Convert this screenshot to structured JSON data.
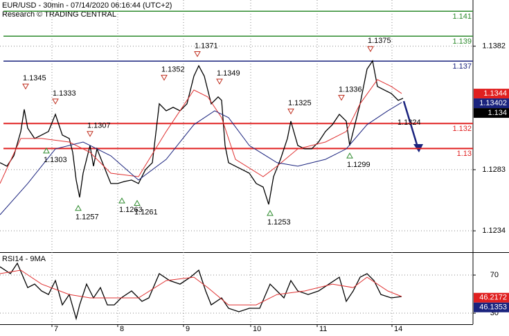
{
  "chart_data": [
    {
      "type": "price",
      "title": "EUR/USD - 30min - 07/14/2020 06:16:44 (UTC+2)",
      "subtitle": "Research © TRADING CENTRAL",
      "xlim": [
        0,
        341.5
      ],
      "xticks": [
        {
          "value": 37.5,
          "label": "7"
        },
        {
          "value": 85,
          "label": "8"
        },
        {
          "value": 132.5,
          "label": "9"
        },
        {
          "value": 181,
          "label": "10"
        },
        {
          "value": 229,
          "label": "11"
        },
        {
          "value": 283,
          "label": "14"
        }
      ],
      "ylim": [
        1.1218,
        1.1419
      ],
      "yticks": [
        1.1234,
        1.1283,
        1.1382
      ],
      "grid": true,
      "series": [
        {
          "color": "#000000",
          "x": [
            0,
            5,
            10,
            15,
            17.5,
            20,
            25,
            30,
            35,
            40,
            45,
            50,
            52.5,
            55,
            57.5,
            60,
            62.5,
            65,
            67.5,
            70,
            75,
            80,
            85,
            90,
            95,
            100,
            105,
            110,
            115,
            120,
            125,
            130,
            135,
            140,
            143.5,
            147.5,
            152.5,
            157.5,
            160,
            162.5,
            165,
            170,
            175,
            180,
            185,
            190,
            194,
            197.5,
            202.5,
            207.5,
            210,
            215,
            220,
            225,
            230,
            235,
            240,
            245,
            250,
            252.5,
            255,
            260,
            265,
            269,
            272.5,
            277.5,
            282.5,
            287.5,
            291
          ],
          "values": [
            1.12886,
            1.12858,
            1.12941,
            1.13136,
            1.13313,
            1.13163,
            1.1308,
            1.13108,
            1.13136,
            1.13274,
            1.13108,
            1.1308,
            1.12969,
            1.12747,
            1.12608,
            1.12802,
            1.12913,
            1.13024,
            1.12858,
            1.12997,
            1.12858,
            1.12719,
            1.12719,
            1.12736,
            1.12747,
            1.12719,
            1.1283,
            1.12886,
            1.13358,
            1.13302,
            1.1333,
            1.13302,
            1.13358,
            1.1358,
            1.13663,
            1.1358,
            1.13358,
            1.13413,
            1.13386,
            1.13024,
            1.12886,
            1.12858,
            1.1283,
            1.12802,
            1.12719,
            1.12691,
            1.12552,
            1.12774,
            1.12913,
            1.1308,
            1.13219,
            1.13024,
            1.12997,
            1.12997,
            1.13052,
            1.13136,
            1.13191,
            1.13274,
            1.13219,
            1.13024,
            1.13136,
            1.13358,
            1.13636,
            1.13702,
            1.13497,
            1.13469,
            1.13441,
            1.13386,
            1.13402
          ]
        },
        {
          "color": "#e03030",
          "x": [
            0,
            15,
            30,
            50,
            65,
            80,
            100,
            120,
            140,
            150,
            160,
            170,
            190,
            200,
            215,
            235,
            250,
            260,
            272.5,
            282.5,
            290
          ],
          "values": [
            1.12719,
            1.1308,
            1.1308,
            1.13052,
            1.12969,
            1.12802,
            1.12774,
            1.13136,
            1.13469,
            1.13413,
            1.13247,
            1.12913,
            1.12774,
            1.12858,
            1.12997,
            1.13052,
            1.13136,
            1.13358,
            1.13552,
            1.13497,
            1.13441
          ]
        },
        {
          "color": "#1a237e",
          "x": [
            0,
            20,
            40,
            60,
            80,
            100,
            120,
            140,
            155,
            165,
            180,
            200,
            215,
            235,
            250,
            265,
            280,
            290
          ],
          "values": [
            1.12469,
            1.12719,
            1.12997,
            1.13052,
            1.12941,
            1.12747,
            1.12913,
            1.13191,
            1.13302,
            1.13247,
            1.13024,
            1.12886,
            1.12858,
            1.12913,
            1.12997,
            1.13191,
            1.13302,
            1.13369
          ]
        }
      ],
      "levels": [
        {
          "value": 1.141,
          "color": "#2e8b2e"
        },
        {
          "value": 1.139,
          "color": "#2e8b2e"
        },
        {
          "value": 1.137,
          "color": "#1a237e"
        },
        {
          "value": 1.132,
          "color": "#e02020"
        },
        {
          "value": 1.13,
          "color": "#e02020"
        }
      ],
      "annotations": [
        {
          "x": 18.5,
          "value": 1.1345,
          "kind": "high"
        },
        {
          "x": 40,
          "value": 1.1333,
          "kind": "high"
        },
        {
          "x": 65,
          "value": 1.1307,
          "kind": "high"
        },
        {
          "x": 118.5,
          "value": 1.1352,
          "kind": "high"
        },
        {
          "x": 142.5,
          "value": 1.1371,
          "kind": "high"
        },
        {
          "x": 158.5,
          "value": 1.1349,
          "kind": "high"
        },
        {
          "x": 210,
          "value": 1.1325,
          "kind": "high"
        },
        {
          "x": 246.5,
          "value": 1.1336,
          "kind": "high"
        },
        {
          "x": 267.5,
          "value": 1.1375,
          "kind": "high"
        },
        {
          "x": 33.5,
          "value": 1.1303,
          "kind": "low"
        },
        {
          "x": 56.5,
          "value": 1.1257,
          "kind": "low"
        },
        {
          "x": 88,
          "value": 1.1263,
          "kind": "low"
        },
        {
          "x": 99,
          "value": 1.1261,
          "kind": "low"
        },
        {
          "x": 195,
          "value": 1.1253,
          "kind": "low"
        },
        {
          "x": 252.5,
          "value": 1.1299,
          "kind": "low"
        },
        {
          "x": 287,
          "value": 1.1324,
          "kind": "target"
        }
      ],
      "last_values": [
        {
          "value": 1.1344,
          "color": "#e02020"
        },
        {
          "value": 1.13402,
          "color": "#1a237e"
        },
        {
          "value": 1.134,
          "color": "#000000"
        }
      ]
    },
    {
      "type": "oscillator",
      "title": "RSI14 - 9MA",
      "xlim": [
        0,
        341.5
      ],
      "ylim": [
        18.4,
        93.3
      ],
      "yticks": [
        30,
        70
      ],
      "grid": true,
      "series": [
        {
          "color": "#000000",
          "x": [
            0,
            7.5,
            12.5,
            20,
            25,
            30,
            35,
            40,
            45,
            50,
            55,
            57.5,
            62.5,
            67.5,
            72.5,
            77.5,
            82.5,
            87.5,
            95,
            102.5,
            107.5,
            115,
            122.5,
            130,
            137.5,
            143.5,
            148.5,
            152.5,
            160,
            165,
            172.5,
            180,
            187.5,
            195,
            200,
            205,
            210,
            215,
            222.5,
            230,
            237.5,
            245,
            250,
            255,
            260,
            265,
            270,
            275,
            282.5,
            290
          ],
          "values": [
            78.7,
            71.5,
            82.4,
            56.9,
            60.5,
            53.3,
            49.6,
            64.2,
            38.7,
            49.6,
            24.2,
            38.7,
            60.5,
            46,
            56.9,
            38.7,
            38.7,
            46,
            53.3,
            42.4,
            46,
            71.5,
            64.2,
            60.5,
            67.8,
            75.1,
            53.3,
            38.7,
            46,
            35.1,
            31.5,
            35.1,
            35.1,
            60.5,
            53.3,
            46,
            64.2,
            53.3,
            49.6,
            53.3,
            60.5,
            67.8,
            42.4,
            53.3,
            67.8,
            71.5,
            64.2,
            49.6,
            46,
            47.5
          ]
        },
        {
          "color": "#e03030",
          "x": [
            0,
            15,
            30,
            50,
            65,
            80,
            100,
            120,
            140,
            150,
            165,
            185,
            200,
            220,
            240,
            255,
            265,
            280,
            290
          ],
          "values": [
            71.5,
            75.1,
            60.5,
            49.6,
            46,
            46,
            46,
            64.2,
            67.8,
            56.9,
            38.7,
            38.7,
            49.6,
            53.3,
            60.5,
            56.9,
            67.8,
            53.3,
            47.5
          ]
        }
      ],
      "last_values": [
        {
          "value": 46.2172,
          "color": "#e02020"
        },
        {
          "value": 46.1353,
          "color": "#1a237e"
        }
      ]
    }
  ]
}
